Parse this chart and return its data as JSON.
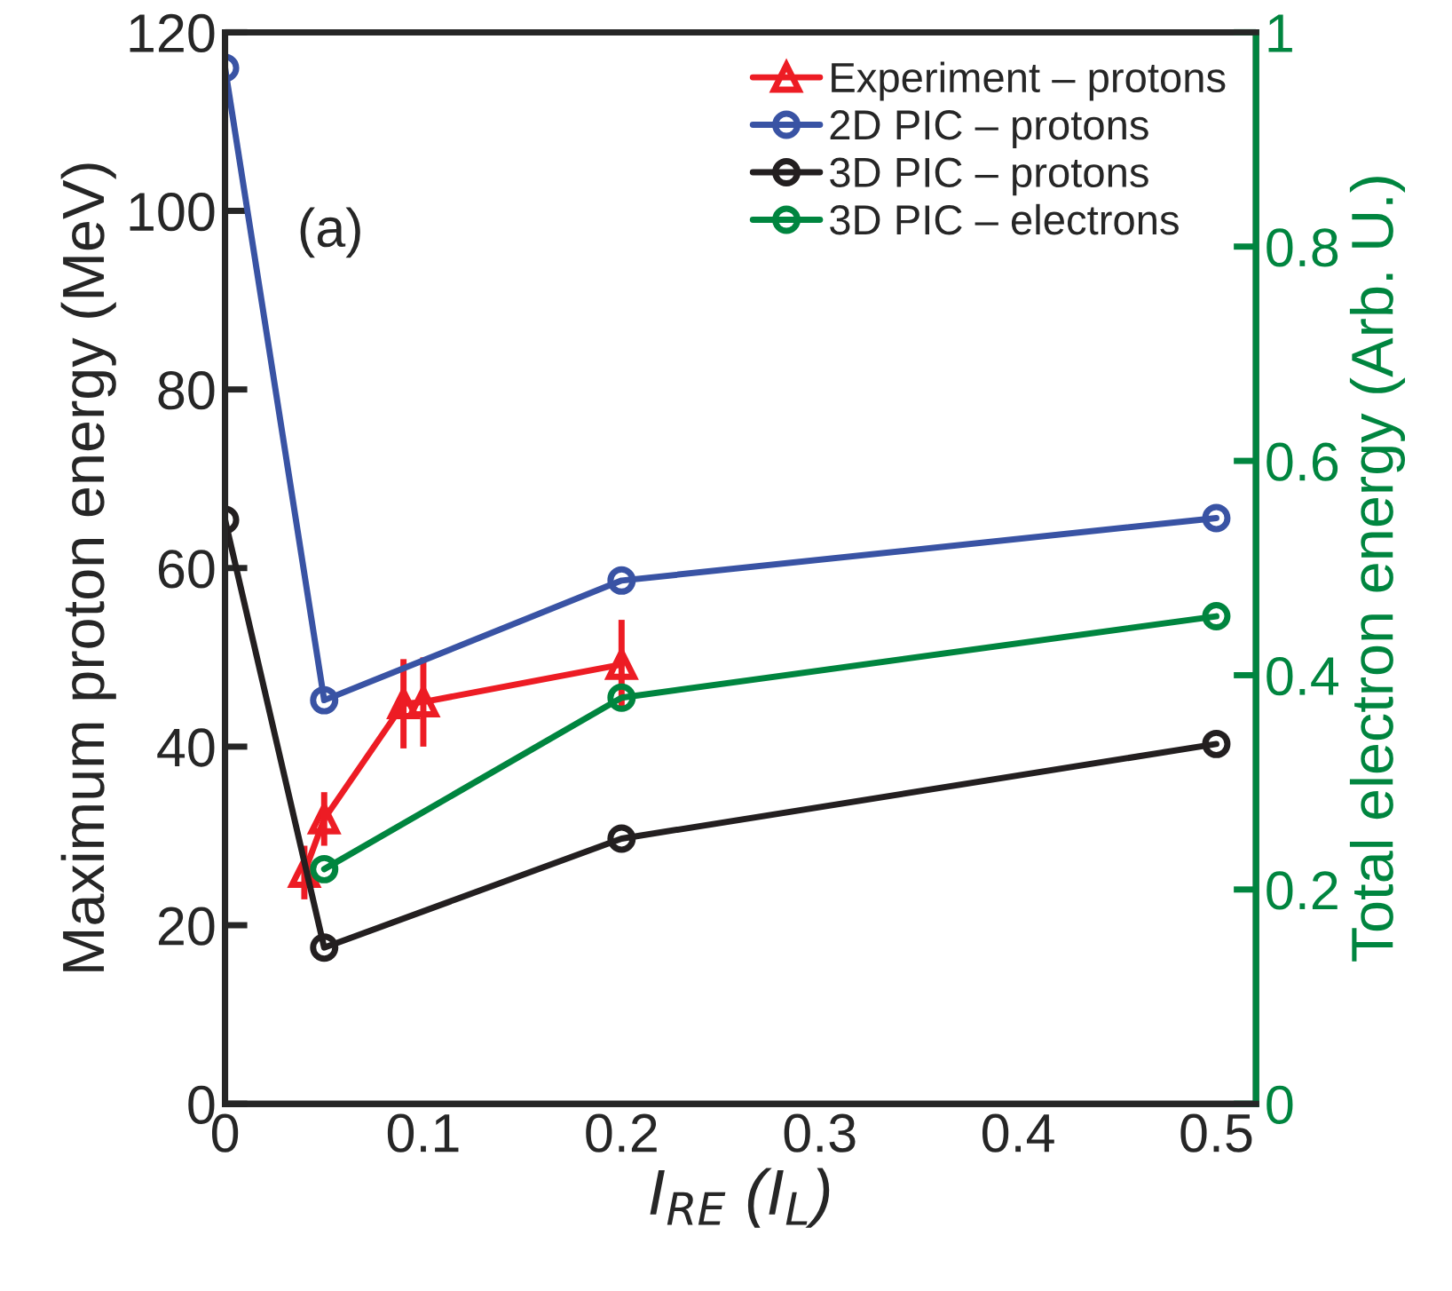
{
  "chart_data": {
    "type": "line",
    "xlabel": "I$_{RE}$ (I$_{L}$)",
    "ylabel": "Maximum proton energy (MeV)",
    "y2label": "Total electron energy (Arb. U.)",
    "annotations": [
      "(a)"
    ],
    "xlim": [
      0,
      0.52
    ],
    "xticks": [
      0,
      0.1,
      0.2,
      0.3,
      0.4,
      0.5
    ],
    "ylim": [
      0,
      120
    ],
    "yticks": [
      0,
      20,
      40,
      60,
      80,
      100,
      120
    ],
    "y2lim": [
      0,
      1
    ],
    "y2ticks": [
      0,
      0.2,
      0.4,
      0.6,
      0.8,
      1
    ],
    "legend": "top right",
    "grid": false,
    "series": [
      {
        "name": "Experiment – protons",
        "color": "#ed1c24",
        "marker": "triangle",
        "x": [
          0.04,
          0.05,
          0.09,
          0.1,
          0.2
        ],
        "values": [
          25.9,
          31.9,
          44.8,
          45,
          49.2
        ],
        "errors": [
          3,
          3,
          5,
          5,
          5
        ]
      },
      {
        "name": "2D PIC – protons",
        "color": "#3953a4",
        "marker": "circle",
        "x": [
          0,
          0.05,
          0.2,
          0.5
        ],
        "values": [
          116,
          45.2,
          58.6,
          65.6
        ]
      },
      {
        "name": "3D PIC – protons",
        "color": "#231f20",
        "marker": "circle",
        "x": [
          0,
          0.05,
          0.2,
          0.5
        ],
        "values": [
          65.4,
          17.5,
          29.7,
          40.3
        ]
      },
      {
        "name": "3D PIC – electrons",
        "color": "#00853f",
        "marker": "circle",
        "axis": "y2",
        "x": [
          0.05,
          0.2,
          0.5
        ],
        "values": [
          0.219,
          0.379,
          0.455
        ]
      }
    ]
  }
}
